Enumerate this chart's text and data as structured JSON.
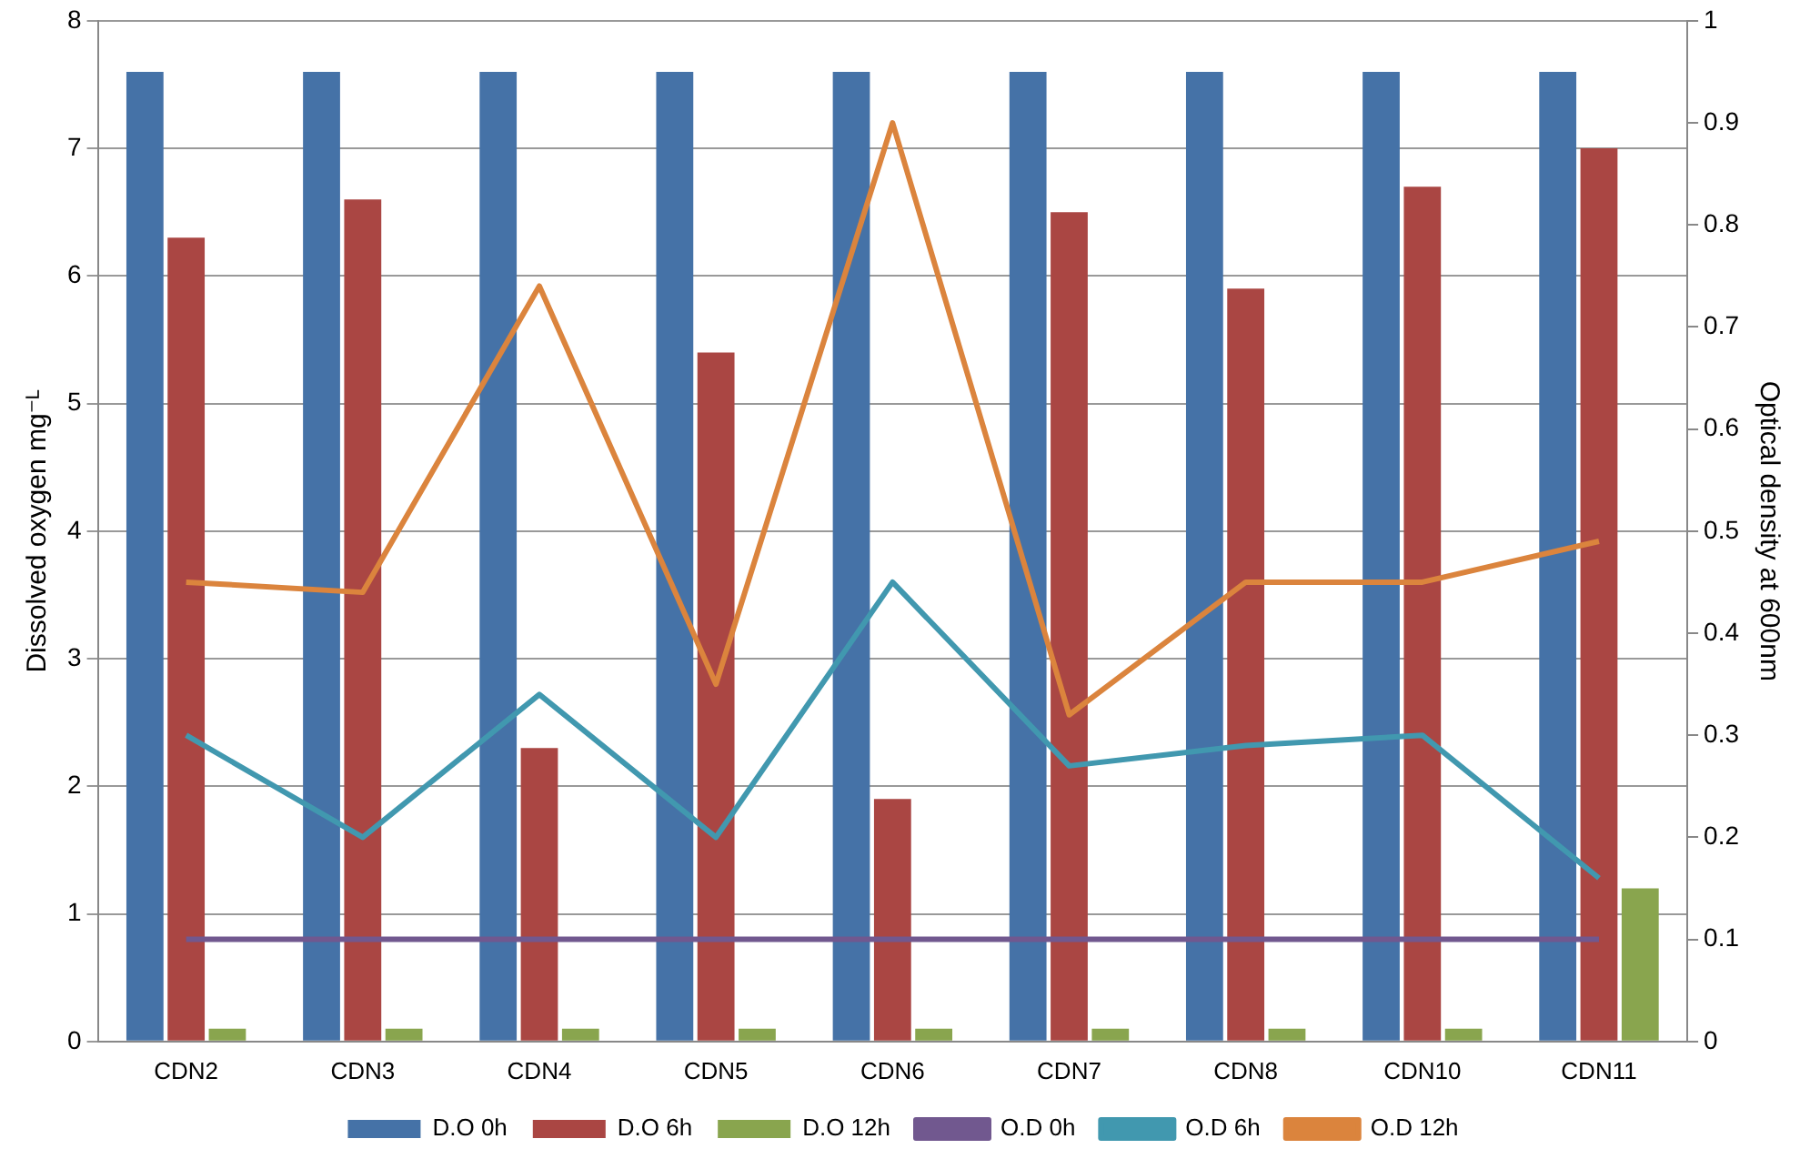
{
  "chart_data": {
    "type": "bar",
    "categories": [
      "CDN2",
      "CDN3",
      "CDN4",
      "CDN5",
      "CDN6",
      "CDN7",
      "CDN8",
      "CDN10",
      "CDN11"
    ],
    "ylabel": "Dissolved oxygen mg⁻ᴸ",
    "y2label": "Optical density at 600nm",
    "ylim": [
      0,
      8
    ],
    "yticks": [
      0,
      1,
      2,
      3,
      4,
      5,
      6,
      7,
      8
    ],
    "y2lim": [
      0,
      1
    ],
    "y2ticks": [
      0,
      0.1,
      0.2,
      0.3,
      0.4,
      0.5,
      0.6,
      0.7,
      0.8,
      0.9,
      1
    ],
    "grid": "y",
    "legend": "bottom",
    "series": [
      {
        "name": "D.O 0h",
        "color": "#4572a7",
        "values": [
          7.6,
          7.6,
          7.6,
          7.6,
          7.6,
          7.6,
          7.6,
          7.6,
          7.6
        ]
      },
      {
        "name": "D.O 6h",
        "color": "#aa4643",
        "values": [
          6.3,
          6.6,
          2.3,
          5.4,
          1.9,
          6.5,
          5.9,
          6.7,
          7.0
        ]
      },
      {
        "name": "D.O 12h",
        "color": "#89a54e",
        "values": [
          0.1,
          0.1,
          0.1,
          0.1,
          0.1,
          0.1,
          0.1,
          0.1,
          1.2
        ]
      },
      {
        "name": "O.D 0h",
        "type": "line",
        "axis": "y2",
        "color": "#71588f",
        "values": [
          0.1,
          0.1,
          0.1,
          0.1,
          0.1,
          0.1,
          0.1,
          0.1,
          0.1
        ]
      },
      {
        "name": "O.D 6h",
        "type": "line",
        "axis": "y2",
        "color": "#4198af",
        "values": [
          0.3,
          0.2,
          0.34,
          0.2,
          0.45,
          0.27,
          0.29,
          0.3,
          0.16
        ]
      },
      {
        "name": "O.D 12h",
        "type": "line",
        "axis": "y2",
        "color": "#db843d",
        "values": [
          0.45,
          0.44,
          0.74,
          0.35,
          0.9,
          0.32,
          0.45,
          0.45,
          0.49
        ]
      }
    ]
  }
}
